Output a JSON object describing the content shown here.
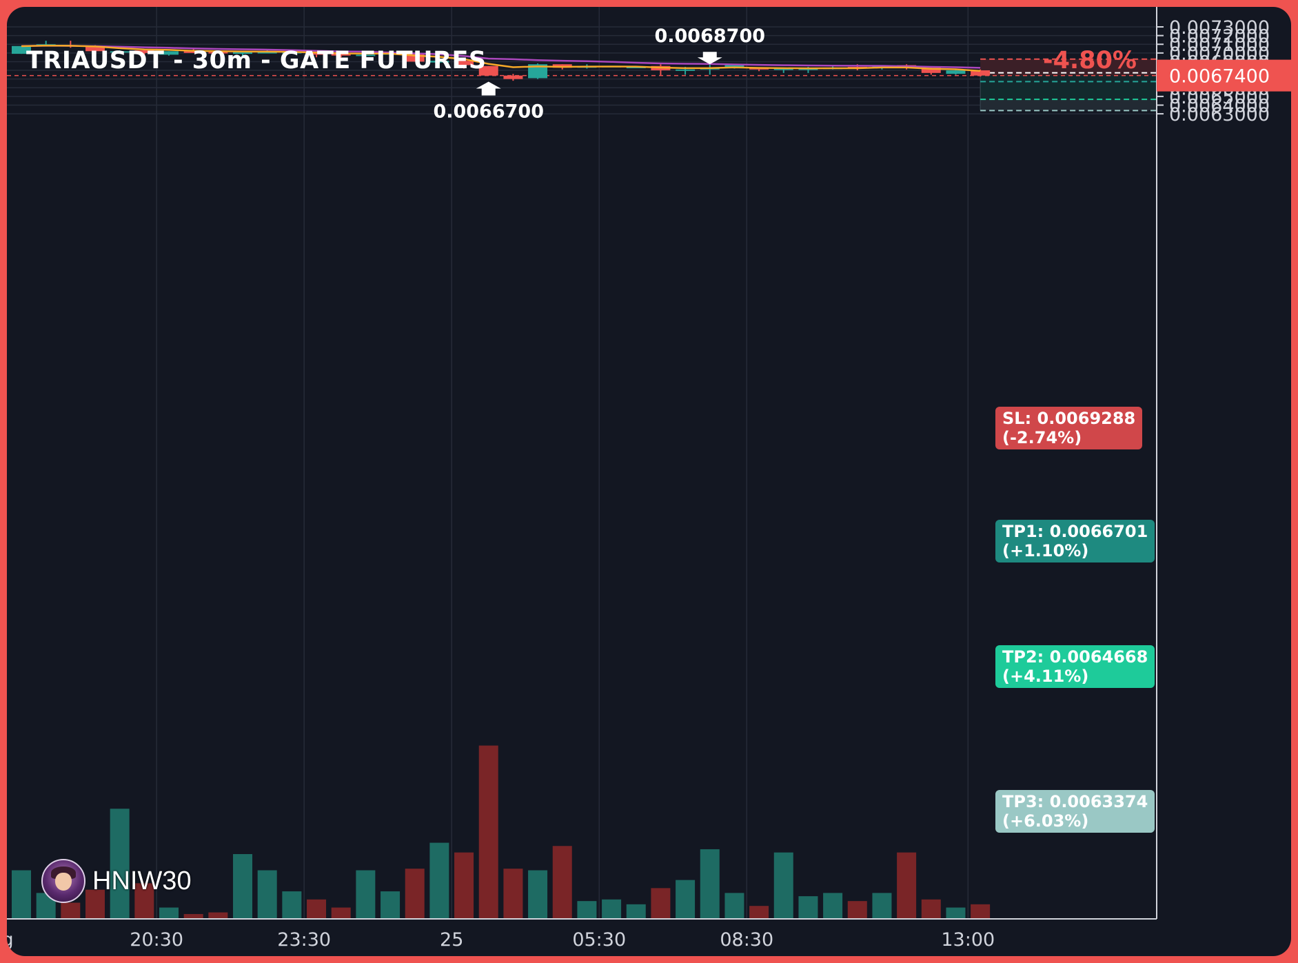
{
  "header": {
    "title": "TRIAUSDT - 30m - GATE FUTURES",
    "change": "-4.80%"
  },
  "branding": {
    "name": "HNIW30",
    "avatar_icon": "avatar-cartoon-icon"
  },
  "colors": {
    "background": "#131722",
    "frame": "#ef5350",
    "up": "#26a69a",
    "down": "#ef5350",
    "ema_fast": "#f7a928",
    "ema_slow": "#ab47bc",
    "sl_zone": "#3b1f27",
    "tp_zone": "#13292d",
    "tp_zone_far": "#222a33"
  },
  "annotations": {
    "high_label": "0.0068700",
    "low_label": "0.0066700"
  },
  "trade_levels": {
    "entry_price": 0.00674,
    "entry_label": "0.0067400",
    "sl": {
      "price": 0.0069288,
      "label": "SL: 0.0069288",
      "pct": "(-2.74%)"
    },
    "tp1": {
      "price": 0.0066701,
      "label": "TP1: 0.0066701",
      "pct": "(+1.10%)"
    },
    "tp2": {
      "price": 0.0064668,
      "label": "TP2: 0.0064668",
      "pct": "(+4.11%)"
    },
    "tp3": {
      "price": 0.0063374,
      "label": "TP3: 0.0063374",
      "pct": "(+6.03%)"
    }
  },
  "chart_data": {
    "type": "candlestick",
    "ylim": [
      0.0062745,
      0.0073175
    ],
    "y_ticks": [
      {
        "value": 0.0073,
        "label": "0.0073000"
      },
      {
        "value": 0.0072,
        "label": "0.0072000"
      },
      {
        "value": 0.0071,
        "label": "0.0071000"
      },
      {
        "value": 0.007,
        "label": "0.0070000"
      },
      {
        "value": 0.0069,
        "label": "0.0069000"
      },
      {
        "value": 0.0068,
        "label": "0.0068000"
      },
      {
        "value": 0.0067,
        "label": "0.0067000"
      },
      {
        "value": 0.0066,
        "label": "0.0066000"
      },
      {
        "value": 0.0065,
        "label": "0.0065000"
      },
      {
        "value": 0.0064,
        "label": "0.0064000"
      },
      {
        "value": 0.0063,
        "label": "0.0063000"
      }
    ],
    "x_ticks": [
      {
        "index": -0.8,
        "label": "ug"
      },
      {
        "index": 5.5,
        "label": "20:30"
      },
      {
        "index": 11.5,
        "label": "23:30"
      },
      {
        "index": 17.5,
        "label": "25"
      },
      {
        "index": 23.5,
        "label": "05:30"
      },
      {
        "index": 29.5,
        "label": "08:30"
      },
      {
        "index": 38.5,
        "label": "13:00"
      }
    ],
    "candles": [
      {
        "o": 0.00699,
        "h": 0.00708,
        "l": 0.00699,
        "c": 0.00708,
        "v": 0.3
      },
      {
        "o": 0.00709,
        "h": 0.00714,
        "l": 0.00708,
        "c": 0.0071,
        "v": 0.16
      },
      {
        "o": 0.00709,
        "h": 0.00714,
        "l": 0.00706,
        "c": 0.00708,
        "v": 0.1
      },
      {
        "o": 0.00708,
        "h": 0.00709,
        "l": 0.00701,
        "c": 0.00702,
        "v": 0.18
      },
      {
        "o": 0.00702,
        "h": 0.00703,
        "l": 0.007,
        "c": 0.00702,
        "v": 0.68
      },
      {
        "o": 0.00703,
        "h": 0.00703,
        "l": 0.00698,
        "c": 0.007,
        "v": 0.22
      },
      {
        "o": 0.00698,
        "h": 0.00702,
        "l": 0.00697,
        "c": 0.00702,
        "v": 0.07
      },
      {
        "o": 0.00703,
        "h": 0.00705,
        "l": 0.007,
        "c": 0.007,
        "v": 0.03
      },
      {
        "o": 0.00701,
        "h": 0.00702,
        "l": 0.007,
        "c": 0.007,
        "v": 0.04
      },
      {
        "o": 0.00699,
        "h": 0.00701,
        "l": 0.00696,
        "c": 0.00701,
        "v": 0.4
      },
      {
        "o": 0.00701,
        "h": 0.00703,
        "l": 0.007,
        "c": 0.00701,
        "v": 0.3
      },
      {
        "o": 0.00701,
        "h": 0.00703,
        "l": 0.007,
        "c": 0.00701,
        "v": 0.17
      },
      {
        "o": 0.00701,
        "h": 0.00701,
        "l": 0.00695,
        "c": 0.00698,
        "v": 0.12
      },
      {
        "o": 0.00699,
        "h": 0.007,
        "l": 0.00695,
        "c": 0.00697,
        "v": 0.07
      },
      {
        "o": 0.00697,
        "h": 0.00699,
        "l": 0.00694,
        "c": 0.00698,
        "v": 0.3
      },
      {
        "o": 0.00698,
        "h": 0.00702,
        "l": 0.00696,
        "c": 0.007,
        "v": 0.17
      },
      {
        "o": 0.00699,
        "h": 0.007,
        "l": 0.0069,
        "c": 0.0069,
        "v": 0.31
      },
      {
        "o": 0.00689,
        "h": 0.00697,
        "l": 0.00688,
        "c": 0.00691,
        "v": 0.47
      },
      {
        "o": 0.00691,
        "h": 0.00692,
        "l": 0.00682,
        "c": 0.00686,
        "v": 0.41
      },
      {
        "o": 0.00685,
        "h": 0.00685,
        "l": 0.00674,
        "c": 0.00674,
        "v": 1.07
      },
      {
        "o": 0.00674,
        "h": 0.00676,
        "l": 0.00668,
        "c": 0.0067,
        "v": 0.31
      },
      {
        "o": 0.00671,
        "h": 0.00688,
        "l": 0.0067,
        "c": 0.00687,
        "v": 0.3
      },
      {
        "o": 0.00687,
        "h": 0.00687,
        "l": 0.00681,
        "c": 0.00683,
        "v": 0.45
      },
      {
        "o": 0.00683,
        "h": 0.00687,
        "l": 0.00682,
        "c": 0.00685,
        "v": 0.11
      },
      {
        "o": 0.00685,
        "h": 0.00685,
        "l": 0.00684,
        "c": 0.00685,
        "v": 0.12
      },
      {
        "o": 0.00684,
        "h": 0.00685,
        "l": 0.00684,
        "c": 0.00684,
        "v": 0.09
      },
      {
        "o": 0.00685,
        "h": 0.00687,
        "l": 0.00674,
        "c": 0.0068,
        "v": 0.19
      },
      {
        "o": 0.00681,
        "h": 0.00684,
        "l": 0.00675,
        "c": 0.00681,
        "v": 0.24
      },
      {
        "o": 0.00681,
        "h": 0.00687,
        "l": 0.00675,
        "c": 0.00683,
        "v": 0.43
      },
      {
        "o": 0.00683,
        "h": 0.00687,
        "l": 0.00682,
        "c": 0.00686,
        "v": 0.16
      },
      {
        "o": 0.00683,
        "h": 0.00683,
        "l": 0.00679,
        "c": 0.00681,
        "v": 0.08
      },
      {
        "o": 0.00681,
        "h": 0.00683,
        "l": 0.00677,
        "c": 0.00682,
        "v": 0.41
      },
      {
        "o": 0.00681,
        "h": 0.00684,
        "l": 0.00677,
        "c": 0.00682,
        "v": 0.14
      },
      {
        "o": 0.00682,
        "h": 0.00686,
        "l": 0.00681,
        "c": 0.00683,
        "v": 0.16
      },
      {
        "o": 0.00684,
        "h": 0.00687,
        "l": 0.0068,
        "c": 0.00683,
        "v": 0.11
      },
      {
        "o": 0.00683,
        "h": 0.00686,
        "l": 0.00681,
        "c": 0.00686,
        "v": 0.16
      },
      {
        "o": 0.00686,
        "h": 0.00687,
        "l": 0.00681,
        "c": 0.00683,
        "v": 0.41
      },
      {
        "o": 0.00683,
        "h": 0.00683,
        "l": 0.00675,
        "c": 0.00677,
        "v": 0.12
      },
      {
        "o": 0.00676,
        "h": 0.00681,
        "l": 0.00675,
        "c": 0.0068,
        "v": 0.07
      },
      {
        "o": 0.0068,
        "h": 0.00681,
        "l": 0.00673,
        "c": 0.00674,
        "v": 0.09
      }
    ],
    "ema_fast": [
      0.007078,
      0.007085,
      0.007083,
      0.007075,
      0.007055,
      0.00704,
      0.007035,
      0.007025,
      0.00702,
      0.007017,
      0.007015,
      0.007013,
      0.007005,
      0.006995,
      0.006992,
      0.006993,
      0.00697,
      0.006955,
      0.00693,
      0.006875,
      0.006836,
      0.006845,
      0.00684,
      0.006843,
      0.006844,
      0.006843,
      0.006832,
      0.006825,
      0.006826,
      0.006834,
      0.006828,
      0.006825,
      0.006823,
      0.006824,
      0.006824,
      0.006833,
      0.006833,
      0.006818,
      0.006812,
      0.006793
    ],
    "ema_slow": [
      0.00708,
      0.007083,
      0.007082,
      0.007078,
      0.007072,
      0.007065,
      0.00706,
      0.007052,
      0.007046,
      0.007042,
      0.007038,
      0.007032,
      0.007025,
      0.007018,
      0.007015,
      0.007005,
      0.006995,
      0.006985,
      0.006965,
      0.006935,
      0.006928,
      0.006918,
      0.006911,
      0.006905,
      0.006898,
      0.006888,
      0.00688,
      0.006876,
      0.006874,
      0.006868,
      0.006863,
      0.006859,
      0.006856,
      0.006854,
      0.006853,
      0.006852,
      0.006847,
      0.00684,
      0.006836,
      0.006829
    ]
  }
}
